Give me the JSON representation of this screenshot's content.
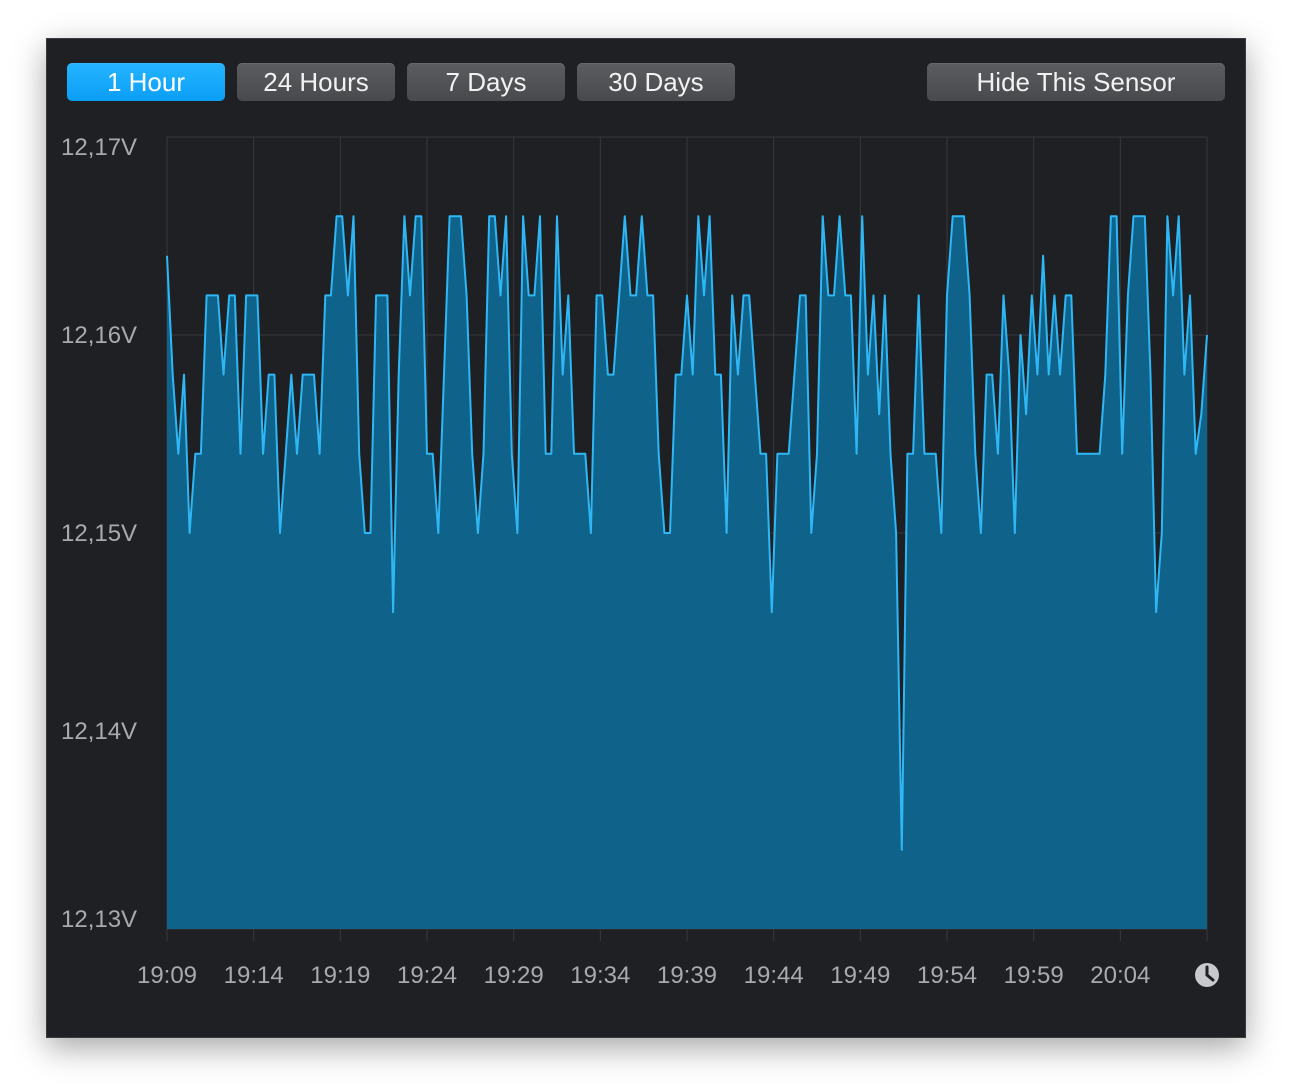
{
  "toolbar": {
    "ranges": [
      "1 Hour",
      "24 Hours",
      "7 Days",
      "30 Days"
    ],
    "active_range": "1 Hour",
    "hide_label": "Hide This Sensor"
  },
  "colors": {
    "line": "#2fb7f5",
    "fill": "#0f6289",
    "grid": "#38393c",
    "active_button": "#14a9fb",
    "background": "#1f2023"
  },
  "clock_icon": "clock-icon",
  "chart_data": {
    "type": "area",
    "unit": "V",
    "ylim": [
      12.13,
      12.17
    ],
    "y_ticks": [
      "12,17V",
      "12,16V",
      "12,15V",
      "12,14V",
      "12,13V"
    ],
    "x_ticks": [
      "19:09",
      "19:14",
      "19:19",
      "19:24",
      "19:29",
      "19:34",
      "19:39",
      "19:44",
      "19:49",
      "19:54",
      "19:59",
      "20:04"
    ],
    "x_range": [
      "19:09",
      "20:09"
    ],
    "grid": true,
    "series": [
      {
        "values": [
          12.164,
          12.158,
          12.154,
          12.158,
          12.15,
          12.154,
          12.154,
          12.162,
          12.162,
          12.162,
          12.158,
          12.162,
          12.162,
          12.154,
          12.162,
          12.162,
          12.162,
          12.154,
          12.158,
          12.158,
          12.15,
          12.154,
          12.158,
          12.154,
          12.158,
          12.158,
          12.158,
          12.154,
          12.162,
          12.162,
          12.166,
          12.166,
          12.162,
          12.166,
          12.154,
          12.15,
          12.15,
          12.162,
          12.162,
          12.162,
          12.146,
          12.158,
          12.166,
          12.162,
          12.166,
          12.166,
          12.154,
          12.154,
          12.15,
          12.158,
          12.166,
          12.166,
          12.166,
          12.162,
          12.154,
          12.15,
          12.154,
          12.166,
          12.166,
          12.162,
          12.166,
          12.154,
          12.15,
          12.166,
          12.162,
          12.162,
          12.166,
          12.154,
          12.154,
          12.166,
          12.158,
          12.162,
          12.154,
          12.154,
          12.154,
          12.15,
          12.162,
          12.162,
          12.158,
          12.158,
          12.162,
          12.166,
          12.162,
          12.162,
          12.166,
          12.162,
          12.162,
          12.154,
          12.15,
          12.15,
          12.158,
          12.158,
          12.162,
          12.158,
          12.166,
          12.162,
          12.166,
          12.158,
          12.158,
          12.15,
          12.162,
          12.158,
          12.162,
          12.162,
          12.158,
          12.154,
          12.154,
          12.146,
          12.154,
          12.154,
          12.154,
          12.158,
          12.162,
          12.162,
          12.15,
          12.154,
          12.166,
          12.162,
          12.162,
          12.166,
          12.162,
          12.162,
          12.154,
          12.166,
          12.158,
          12.162,
          12.156,
          12.162,
          12.154,
          12.15,
          12.134,
          12.154,
          12.154,
          12.162,
          12.154,
          12.154,
          12.154,
          12.15,
          12.162,
          12.166,
          12.166,
          12.166,
          12.162,
          12.154,
          12.15,
          12.158,
          12.158,
          12.154,
          12.162,
          12.158,
          12.15,
          12.16,
          12.156,
          12.162,
          12.158,
          12.164,
          12.158,
          12.162,
          12.158,
          12.162,
          12.162,
          12.154,
          12.154,
          12.154,
          12.154,
          12.154,
          12.158,
          12.166,
          12.166,
          12.154,
          12.162,
          12.166,
          12.166,
          12.166,
          12.158,
          12.146,
          12.15,
          12.166,
          12.162,
          12.166,
          12.158,
          12.162,
          12.154,
          12.156,
          12.16
        ]
      }
    ]
  }
}
